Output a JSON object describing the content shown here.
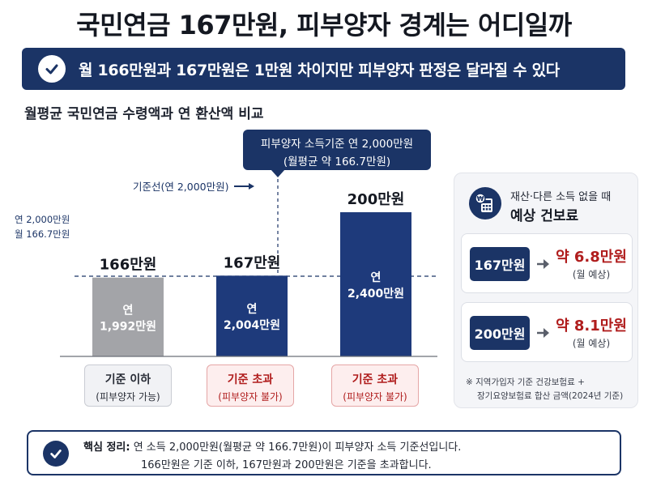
{
  "title": "국민연금 167만원, 피부양자 경계는 어디일까",
  "banner": {
    "text": "월 166만원과 167만원은 1만원 차이지만 피부양자 판정은 달라질 수 있다"
  },
  "subtitle": "월평균 국민연금 수령액과 연 환산액 비교",
  "callout": {
    "line1": "피부양자 소득기준 연 2,000만원",
    "line2": "(월평균 약 166.7만원)"
  },
  "reference_note": "기준선(연 2,000만원)",
  "reference_axis_labels": [
    "연 2,000만원",
    "월 166.7만원"
  ],
  "chart_data": {
    "type": "bar",
    "title": "월평균 국민연금 수령액과 연 환산액 비교",
    "categories": [
      "166만원",
      "167만원",
      "200만원"
    ],
    "values_monthly_10k_won": [
      166,
      167,
      200
    ],
    "values_annual_10k_won": [
      1992,
      2004,
      2400
    ],
    "bar_inner_labels": [
      {
        "line1": "연",
        "line2": "1,992만원"
      },
      {
        "line1": "연",
        "line2": "2,004만원"
      },
      {
        "line1": "연",
        "line2": "2,400만원"
      }
    ],
    "threshold": {
      "monthly_10k_won": 166.7,
      "annual_10k_won": 2000
    },
    "bar_colors": [
      "#a3a4a8",
      "#1e3a7b",
      "#1e3a7b"
    ],
    "status": [
      {
        "label": "기준 이하",
        "sub": "(피부양자 가능)",
        "tone": "neutral"
      },
      {
        "label": "기준 초과",
        "sub": "(피부양자 불가)",
        "tone": "alert"
      },
      {
        "label": "기준 초과",
        "sub": "(피부양자 불가)",
        "tone": "alert"
      }
    ]
  },
  "panel": {
    "heading1": "재산·다른 소득 없을 때",
    "heading2": "예상 건보료",
    "icon": "calculator-coin-icon",
    "rows": [
      {
        "amount": "167만원",
        "fee": "약 6.8만원",
        "period": "(월 예상)"
      },
      {
        "amount": "200만원",
        "fee": "약 8.1만원",
        "period": "(월 예상)"
      }
    ],
    "note_line1": "※ 지역가입자 기준 건강보험료 +",
    "note_line2": "장기요양보험료 합산 금액(2024년 기준)"
  },
  "summary": {
    "label": "핵심 정리:",
    "line1": "연 소득 2,000만원(월평균 약 166.7만원)이 피부양자 소득 기준선입니다.",
    "line2": "166만원은 기준 이하, 167만원과 200만원은 기준을 초과합니다."
  },
  "colors": {
    "navy": "#1b3466",
    "bar_navy": "#1e3a7b",
    "gray_bar": "#a3a4a8",
    "alert_red": "#b01d1d"
  }
}
